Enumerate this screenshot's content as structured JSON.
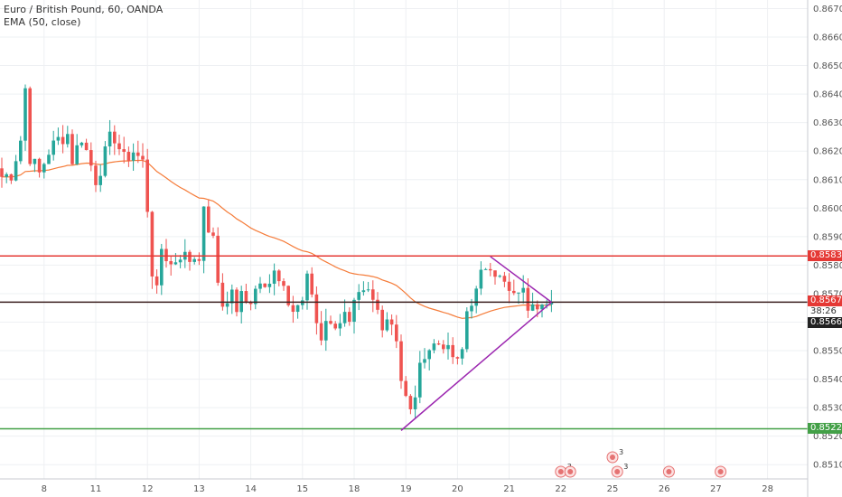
{
  "legend": {
    "title": "Euro / British Pound, 60, OANDA",
    "indicator": "EMA (50, close)"
  },
  "colors": {
    "up": "#26a69a",
    "down": "#ef5350",
    "ema": "#f57c3a",
    "resistance": "#e53935",
    "support": "#43a047",
    "current_line": "#3b1f1f",
    "trendline": "#9c27b0",
    "grid": "#eef0f3"
  },
  "price_tags": {
    "resistance": "0.85832",
    "current": "0.85670",
    "countdown": "38:26",
    "ema_value": "0.85668",
    "support": "0.85226"
  },
  "chart_data": {
    "type": "candlestick",
    "symbol": "EUR/GBP",
    "timeframe": "60",
    "ylim": [
      0.8505,
      0.8673
    ],
    "y_ticks": [
      0.851,
      0.852,
      0.853,
      0.854,
      0.855,
      0.856,
      0.857,
      0.858,
      0.859,
      0.86,
      0.861,
      0.862,
      0.863,
      0.864,
      0.865,
      0.866,
      0.867
    ],
    "y_tick_labels": [
      "0.85100",
      "0.85200",
      "0.85300",
      "0.85400",
      "0.85500",
      "0.85600",
      "0.85700",
      "0.85800",
      "0.85900",
      "0.86000",
      "0.86100",
      "0.86200",
      "0.86300",
      "0.86400",
      "0.86500",
      "0.86600",
      "0.86700"
    ],
    "x_ticks": [
      "8",
      "11",
      "12",
      "13",
      "14",
      "15",
      "18",
      "19",
      "20",
      "21",
      "22",
      "25",
      "26",
      "27",
      "28"
    ],
    "x_tick_index": [
      9,
      20,
      31,
      42,
      53,
      64,
      75,
      86,
      97,
      108,
      119,
      130,
      141,
      152,
      163
    ],
    "close_path": [
      [
        0,
        0.8611
      ],
      [
        2,
        0.8612
      ],
      [
        4,
        0.8624
      ],
      [
        5,
        0.8642
      ],
      [
        6,
        0.8618
      ],
      [
        8,
        0.8612
      ],
      [
        10,
        0.862
      ],
      [
        12,
        0.8624
      ],
      [
        14,
        0.8626
      ],
      [
        15,
        0.8617
      ],
      [
        17,
        0.8625
      ],
      [
        18,
        0.862
      ],
      [
        20,
        0.861
      ],
      [
        21,
        0.8614
      ],
      [
        23,
        0.8624
      ],
      [
        24,
        0.8625
      ],
      [
        26,
        0.8617
      ],
      [
        28,
        0.862
      ],
      [
        30,
        0.8616
      ],
      [
        31,
        0.86
      ],
      [
        32,
        0.8578
      ],
      [
        33,
        0.857
      ],
      [
        34,
        0.8586
      ],
      [
        36,
        0.858
      ],
      [
        38,
        0.8584
      ],
      [
        40,
        0.8582
      ],
      [
        42,
        0.8584
      ],
      [
        43,
        0.8598
      ],
      [
        45,
        0.8588
      ],
      [
        46,
        0.8574
      ],
      [
        47,
        0.8567
      ],
      [
        48,
        0.8566
      ],
      [
        49,
        0.8572
      ],
      [
        50,
        0.8562
      ],
      [
        51,
        0.857
      ],
      [
        53,
        0.8568
      ],
      [
        55,
        0.8576
      ],
      [
        57,
        0.8574
      ],
      [
        58,
        0.8577
      ],
      [
        60,
        0.857
      ],
      [
        62,
        0.8564
      ],
      [
        64,
        0.8568
      ],
      [
        65,
        0.8575
      ],
      [
        66,
        0.857
      ],
      [
        67,
        0.856
      ],
      [
        68,
        0.8555
      ],
      [
        69,
        0.8562
      ],
      [
        70,
        0.8558
      ],
      [
        71,
        0.856
      ],
      [
        73,
        0.8562
      ],
      [
        74,
        0.8558
      ],
      [
        75,
        0.8565
      ],
      [
        76,
        0.8568
      ],
      [
        78,
        0.857
      ],
      [
        80,
        0.8564
      ],
      [
        81,
        0.856
      ],
      [
        82,
        0.8562
      ],
      [
        83,
        0.856
      ],
      [
        84,
        0.8555
      ],
      [
        85,
        0.854
      ],
      [
        86,
        0.8533
      ],
      [
        87,
        0.8528
      ],
      [
        88,
        0.8535
      ],
      [
        89,
        0.8543
      ],
      [
        90,
        0.855
      ],
      [
        92,
        0.8552
      ],
      [
        94,
        0.8553
      ],
      [
        95,
        0.8549
      ],
      [
        96,
        0.8548
      ],
      [
        97,
        0.8545
      ],
      [
        98,
        0.855
      ],
      [
        99,
        0.8564
      ],
      [
        100,
        0.8568
      ],
      [
        101,
        0.857
      ],
      [
        102,
        0.8576
      ],
      [
        103,
        0.858
      ],
      [
        104,
        0.8581
      ],
      [
        105,
        0.8578
      ],
      [
        106,
        0.8575
      ],
      [
        107,
        0.8573
      ],
      [
        108,
        0.857
      ],
      [
        109,
        0.8568
      ],
      [
        110,
        0.8572
      ],
      [
        111,
        0.857
      ],
      [
        112,
        0.8566
      ],
      [
        113,
        0.8569
      ],
      [
        114,
        0.8567
      ],
      [
        115,
        0.8569
      ],
      [
        116,
        0.8566
      ],
      [
        117,
        0.8567
      ]
    ],
    "resistance_level": 0.85832,
    "support_level": 0.85226,
    "current_price": 0.8567,
    "ema_last": 0.85668,
    "trendlines": [
      {
        "from": [
          85,
          0.8522
        ],
        "to": [
          117,
          0.8567
        ]
      },
      {
        "from": [
          104,
          0.8583
        ],
        "to": [
          117,
          0.8567
        ]
      }
    ],
    "events": [
      {
        "index": 119,
        "label": "3"
      },
      {
        "index": 121,
        "label": ""
      },
      {
        "index": 130,
        "label": "3"
      },
      {
        "index": 131,
        "label": "3"
      },
      {
        "index": 142,
        "label": ""
      },
      {
        "index": 153,
        "label": ""
      }
    ]
  }
}
